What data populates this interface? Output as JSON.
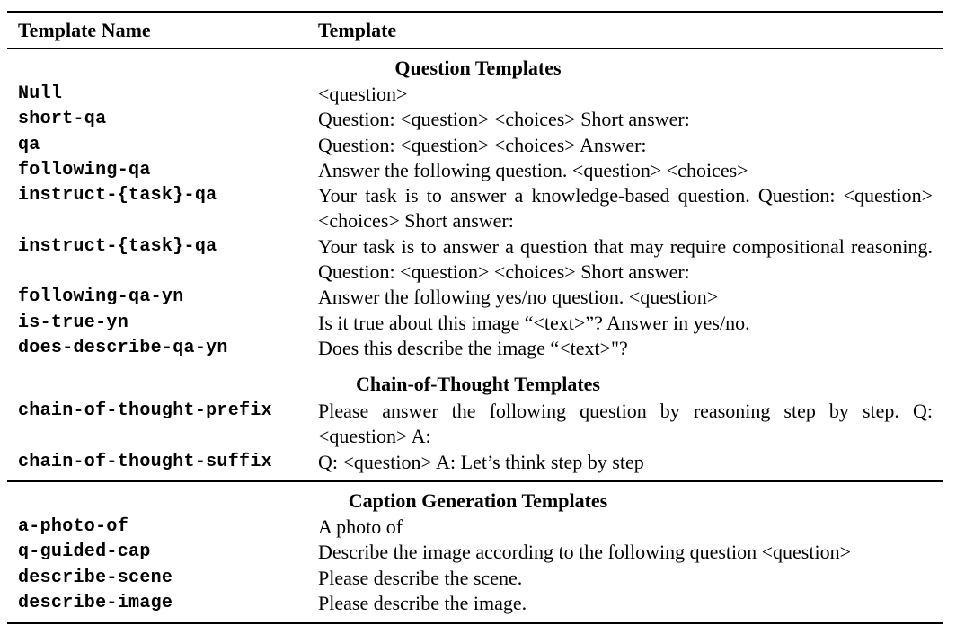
{
  "table": {
    "header": {
      "name_col": "Template Name",
      "template_col": "Template"
    },
    "sections": [
      {
        "title": "Question Templates",
        "rows": [
          {
            "name": "Null",
            "template": "<question>"
          },
          {
            "name": "short-qa",
            "template": "Question: <question> <choices> Short answer:"
          },
          {
            "name": "qa",
            "template": "Question: <question> <choices> Answer:"
          },
          {
            "name": "following-qa",
            "template": "Answer the following question. <question> <choices>"
          },
          {
            "name": "instruct-{task}-qa",
            "template": "Your task is to answer a knowledge-based question.  Question: <question> <choices> Short answer:"
          },
          {
            "name": "instruct-{task}-qa",
            "template": "Your task is to answer a question that may require compositional reasoning. Question: <question> <choices> Short answer:"
          },
          {
            "name": "following-qa-yn",
            "template": "Answer the following yes/no question. <question>"
          },
          {
            "name": "is-true-yn",
            "template": "Is it true about this image “<text>”? Answer in yes/no."
          },
          {
            "name": "does-describe-qa-yn",
            "template": "Does this describe the image “<text>\"?"
          }
        ]
      },
      {
        "title": "Chain-of-Thought Templates",
        "rows": [
          {
            "name": "chain-of-thought-prefix",
            "template": "Please answer the following question by reasoning step by step. Q: <question> A:"
          },
          {
            "name": "chain-of-thought-suffix",
            "template": "Q: <question> A: Let’s think step by step"
          }
        ]
      },
      {
        "title": "Caption Generation Templates",
        "rows": [
          {
            "name": "a-photo-of",
            "template": "A photo of"
          },
          {
            "name": "q-guided-cap",
            "template": "Describe the image according to the following question <question>"
          },
          {
            "name": "describe-scene",
            "template": "Please describe the scene."
          },
          {
            "name": "describe-image",
            "template": "Please describe the image."
          }
        ]
      }
    ]
  }
}
